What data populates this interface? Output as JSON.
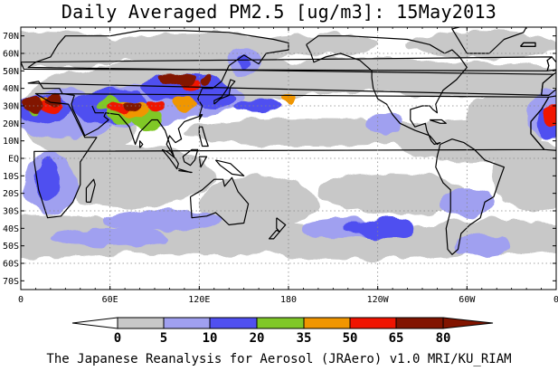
{
  "title": "Daily Averaged PM2.5 [ug/m3]: 15May2013",
  "footer": "The Japanese Reanalysis for Aerosol (JRAero) v1.0 MRI/KU_RIAM",
  "map": {
    "lon_range": [
      0,
      360
    ],
    "lat_range": [
      -75,
      75
    ],
    "grid": true,
    "lat_ticks": [
      "70N",
      "60N",
      "50N",
      "40N",
      "30N",
      "20N",
      "10N",
      "EQ",
      "10S",
      "20S",
      "30S",
      "40S",
      "50S",
      "60S",
      "70S"
    ],
    "lon_ticks": [
      "0",
      "60E",
      "120E",
      "180",
      "120W",
      "60W",
      "0"
    ]
  },
  "colorbar": {
    "thresholds": [
      "0",
      "5",
      "10",
      "20",
      "35",
      "50",
      "65",
      "80"
    ],
    "colors": [
      "#ffffff",
      "#c8c8c8",
      "#a0a0f0",
      "#5050f0",
      "#80c828",
      "#f09600",
      "#f01400",
      "#821400"
    ]
  },
  "chart_data": {
    "type": "heatmap",
    "title": "Daily Averaged PM2.5 [ug/m3]: 15May2013",
    "variable": "PM2.5",
    "units": "ug/m3",
    "date": "15May2013",
    "levels": [
      0,
      5,
      10,
      20,
      35,
      50,
      65,
      80
    ],
    "xlabel": "",
    "ylabel": ""
  }
}
